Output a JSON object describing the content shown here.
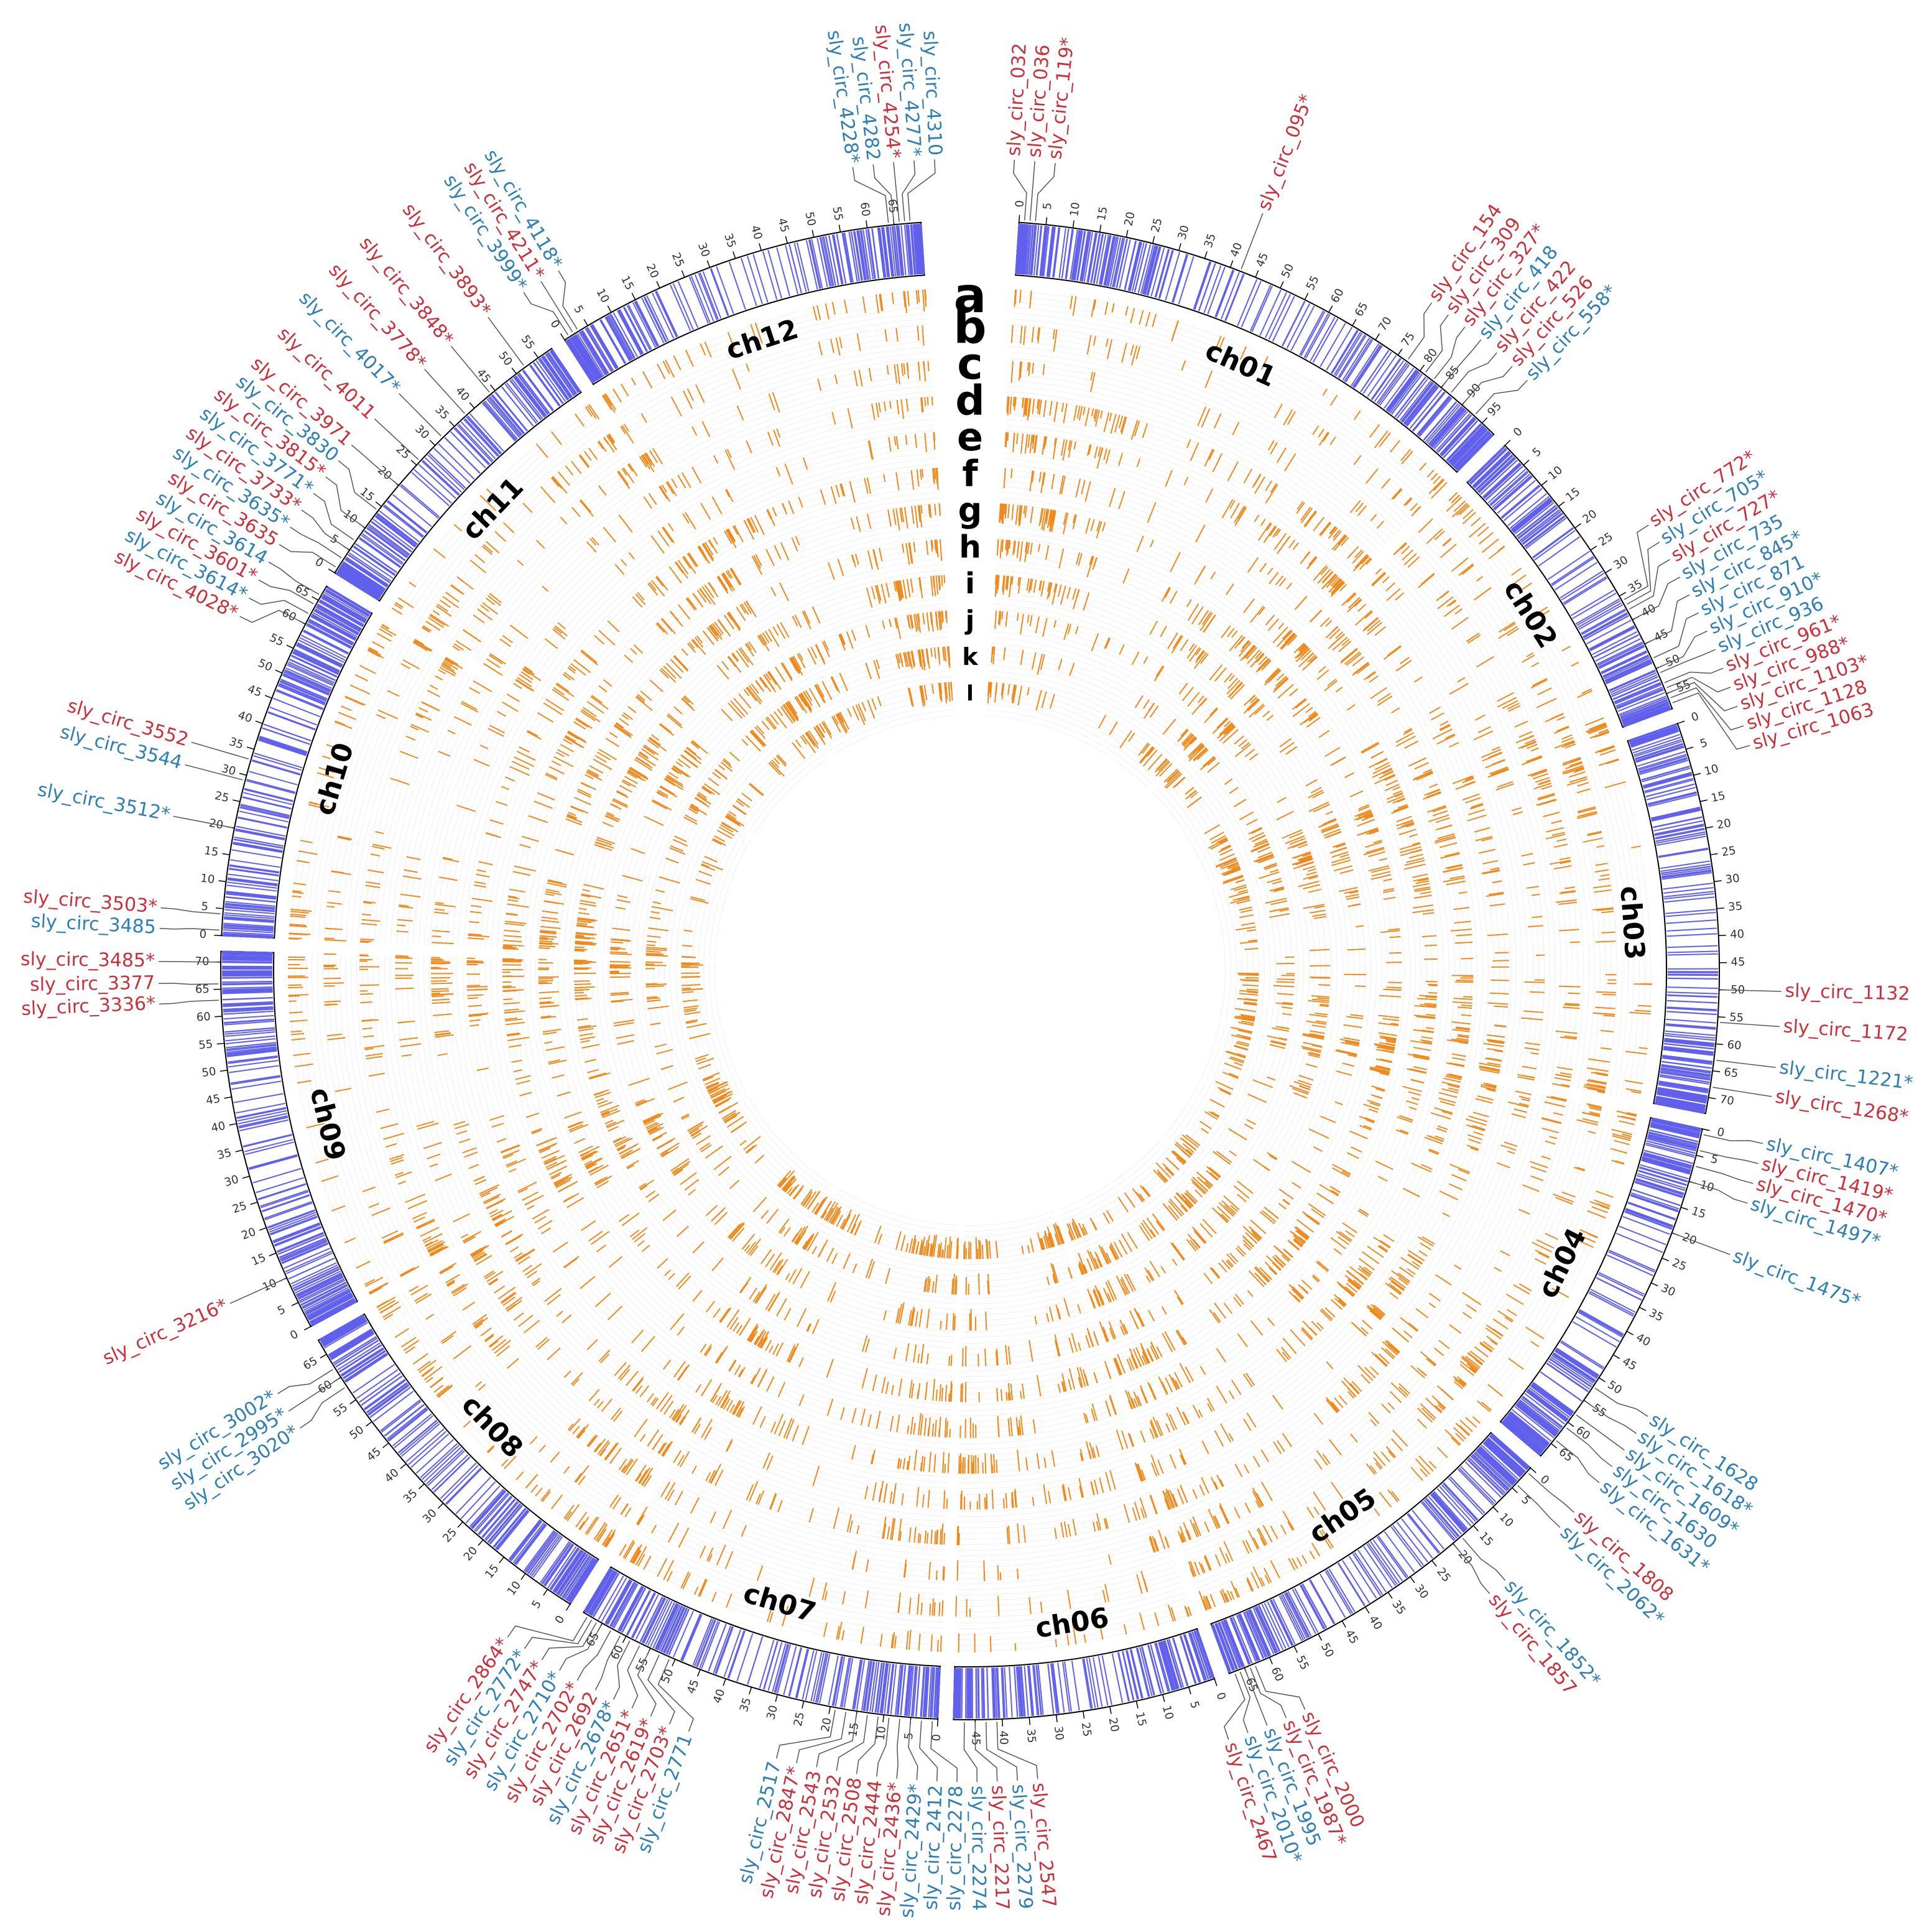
{
  "diagram": {
    "type": "circos",
    "colors": {
      "up": "#c8323c",
      "down": "#2f7fb3",
      "density": "#6060ec",
      "track": "#ee8a1e",
      "grid": "#c8c8c8",
      "ink": "#000000"
    },
    "track_letters": [
      "a",
      "b",
      "c",
      "d",
      "e",
      "f",
      "g",
      "h",
      "i",
      "j",
      "k",
      "l"
    ],
    "chromosomes": [
      {
        "name": "ch01",
        "size": 98,
        "ticks": [
          "0",
          "5",
          "10",
          "15",
          "20",
          "25",
          "30",
          "35",
          "40",
          "45",
          "50",
          "55",
          "60",
          "65",
          "70",
          "75",
          "80",
          "85",
          "90",
          "95"
        ]
      },
      {
        "name": "ch02",
        "size": 58,
        "ticks": [
          "0",
          "5",
          "10",
          "15",
          "20",
          "25",
          "30",
          "35",
          "40",
          "45",
          "50",
          "55"
        ]
      },
      {
        "name": "ch03",
        "size": 73,
        "ticks": [
          "0",
          "5",
          "10",
          "15",
          "20",
          "25",
          "30",
          "35",
          "40",
          "45",
          "50",
          "55",
          "60",
          "65",
          "70"
        ]
      },
      {
        "name": "ch04",
        "size": 68,
        "ticks": [
          "0",
          "5",
          "10",
          "15",
          "20",
          "25",
          "30",
          "35",
          "40",
          "45",
          "50",
          "55",
          "60",
          "65"
        ]
      },
      {
        "name": "ch05",
        "size": 68,
        "ticks": [
          "0",
          "5",
          "10",
          "15",
          "20",
          "25",
          "30",
          "35",
          "40",
          "45",
          "50",
          "55",
          "60",
          "65"
        ]
      },
      {
        "name": "ch06",
        "size": 49,
        "ticks": [
          "0",
          "5",
          "10",
          "15",
          "20",
          "25",
          "30",
          "35",
          "40",
          "45"
        ]
      },
      {
        "name": "ch07",
        "size": 69,
        "ticks": [
          "0",
          "5",
          "10",
          "15",
          "20",
          "25",
          "30",
          "35",
          "40",
          "45",
          "50",
          "55",
          "60",
          "65"
        ]
      },
      {
        "name": "ch08",
        "size": 68,
        "ticks": [
          "0",
          "5",
          "10",
          "15",
          "20",
          "25",
          "30",
          "35",
          "40",
          "45",
          "50",
          "55",
          "60",
          "65"
        ]
      },
      {
        "name": "ch09",
        "size": 72,
        "ticks": [
          "0",
          "5",
          "10",
          "15",
          "20",
          "25",
          "30",
          "35",
          "40",
          "45",
          "50",
          "55",
          "60",
          "65",
          "70"
        ]
      },
      {
        "name": "ch10",
        "size": 68,
        "ticks": [
          "0",
          "5",
          "10",
          "15",
          "20",
          "25",
          "30",
          "35",
          "40",
          "45",
          "50",
          "55",
          "60",
          "65"
        ]
      },
      {
        "name": "ch11",
        "size": 58,
        "ticks": [
          "0",
          "5",
          "10",
          "15",
          "20",
          "25",
          "30",
          "35",
          "40",
          "45",
          "50",
          "55"
        ]
      },
      {
        "name": "ch12",
        "size": 70,
        "ticks": [
          "0",
          "5",
          "10",
          "15",
          "20",
          "25",
          "30",
          "35",
          "40",
          "45",
          "50",
          "55",
          "60",
          "65"
        ]
      }
    ],
    "circrna_labels": [
      {
        "text": "sly_circ_032",
        "chr": "ch01",
        "pos": 1,
        "type": "up"
      },
      {
        "text": "sly_circ_036",
        "chr": "ch01",
        "pos": 2,
        "type": "up"
      },
      {
        "text": "sly_circ_119*",
        "chr": "ch01",
        "pos": 3,
        "type": "up"
      },
      {
        "text": "sly_circ_095*",
        "chr": "ch01",
        "pos": 42,
        "type": "up"
      },
      {
        "text": "sly_circ_154",
        "chr": "ch01",
        "pos": 77,
        "type": "up"
      },
      {
        "text": "sly_circ_309",
        "chr": "ch01",
        "pos": 81,
        "type": "up"
      },
      {
        "text": "sly_circ_327*",
        "chr": "ch01",
        "pos": 83,
        "type": "up"
      },
      {
        "text": "sly_circ_418",
        "chr": "ch01",
        "pos": 85,
        "type": "down"
      },
      {
        "text": "sly_circ_422",
        "chr": "ch01",
        "pos": 87,
        "type": "up"
      },
      {
        "text": "sly_circ_526",
        "chr": "ch01",
        "pos": 90,
        "type": "up"
      },
      {
        "text": "sly_circ_558*",
        "chr": "ch01",
        "pos": 93,
        "type": "down"
      },
      {
        "text": "sly_circ_772*",
        "chr": "ch02",
        "pos": 36,
        "type": "up"
      },
      {
        "text": "sly_circ_705*",
        "chr": "ch02",
        "pos": 37,
        "type": "down"
      },
      {
        "text": "sly_circ_727*",
        "chr": "ch02",
        "pos": 38,
        "type": "up"
      },
      {
        "text": "sly_circ_735",
        "chr": "ch02",
        "pos": 40,
        "type": "down"
      },
      {
        "text": "sly_circ_845*",
        "chr": "ch02",
        "pos": 45,
        "type": "down"
      },
      {
        "text": "sly_circ_871",
        "chr": "ch02",
        "pos": 48,
        "type": "down"
      },
      {
        "text": "sly_circ_910*",
        "chr": "ch02",
        "pos": 50,
        "type": "down"
      },
      {
        "text": "sly_circ_936",
        "chr": "ch02",
        "pos": 51,
        "type": "down"
      },
      {
        "text": "sly_circ_961*",
        "chr": "ch02",
        "pos": 53,
        "type": "up"
      },
      {
        "text": "sly_circ_988*",
        "chr": "ch02",
        "pos": 54,
        "type": "up"
      },
      {
        "text": "sly_circ_1103*",
        "chr": "ch02",
        "pos": 55,
        "type": "up"
      },
      {
        "text": "sly_circ_1128",
        "chr": "ch02",
        "pos": 56,
        "type": "up"
      },
      {
        "text": "sly_circ_1063",
        "chr": "ch02",
        "pos": 57,
        "type": "up"
      },
      {
        "text": "sly_circ_1132",
        "chr": "ch03",
        "pos": 50,
        "type": "up"
      },
      {
        "text": "sly_circ_1172",
        "chr": "ch03",
        "pos": 56,
        "type": "up"
      },
      {
        "text": "sly_circ_1221*",
        "chr": "ch03",
        "pos": 63,
        "type": "down"
      },
      {
        "text": "sly_circ_1268*",
        "chr": "ch03",
        "pos": 68,
        "type": "up"
      },
      {
        "text": "sly_circ_1407*",
        "chr": "ch04",
        "pos": 1,
        "type": "down"
      },
      {
        "text": "sly_circ_1419*",
        "chr": "ch04",
        "pos": 4,
        "type": "up"
      },
      {
        "text": "sly_circ_1470*",
        "chr": "ch04",
        "pos": 7,
        "type": "up"
      },
      {
        "text": "sly_circ_1497*",
        "chr": "ch04",
        "pos": 10,
        "type": "down"
      },
      {
        "text": "sly_circ_1475*",
        "chr": "ch04",
        "pos": 20,
        "type": "down"
      },
      {
        "text": "sly_circ_1628",
        "chr": "ch04",
        "pos": 52,
        "type": "down"
      },
      {
        "text": "sly_circ_1618*",
        "chr": "ch04",
        "pos": 55,
        "type": "down"
      },
      {
        "text": "sly_circ_1609*",
        "chr": "ch04",
        "pos": 58,
        "type": "down"
      },
      {
        "text": "sly_circ_1630",
        "chr": "ch04",
        "pos": 61,
        "type": "down"
      },
      {
        "text": "sly_circ_1631*",
        "chr": "ch04",
        "pos": 64,
        "type": "down"
      },
      {
        "text": "sly_circ_1808",
        "chr": "ch05",
        "pos": 1,
        "type": "up"
      },
      {
        "text": "sly_circ_2062*",
        "chr": "ch05",
        "pos": 4,
        "type": "down"
      },
      {
        "text": "sly_circ_1852*",
        "chr": "ch05",
        "pos": 18,
        "type": "down"
      },
      {
        "text": "sly_circ_1857",
        "chr": "ch05",
        "pos": 20,
        "type": "up"
      },
      {
        "text": "sly_circ_2000",
        "chr": "ch05",
        "pos": 63,
        "type": "up"
      },
      {
        "text": "sly_circ_1987*",
        "chr": "ch05",
        "pos": 64,
        "type": "up"
      },
      {
        "text": "sly_circ_1995",
        "chr": "ch05",
        "pos": 65,
        "type": "down"
      },
      {
        "text": "sly_circ_2010*",
        "chr": "ch05",
        "pos": 66,
        "type": "down"
      },
      {
        "text": "sly_circ_2467",
        "chr": "ch05",
        "pos": 67,
        "type": "up"
      },
      {
        "text": "sly_circ_2547",
        "chr": "ch06",
        "pos": 41,
        "type": "up"
      },
      {
        "text": "sly_circ_2279",
        "chr": "ch06",
        "pos": 43,
        "type": "down"
      },
      {
        "text": "sly_circ_2217",
        "chr": "ch06",
        "pos": 45,
        "type": "up"
      },
      {
        "text": "sly_circ_2274",
        "chr": "ch06",
        "pos": 47,
        "type": "down"
      },
      {
        "text": "sly_circ_2278",
        "chr": "ch07",
        "pos": 1,
        "type": "down"
      },
      {
        "text": "sly_circ_2412",
        "chr": "ch07",
        "pos": 3,
        "type": "down"
      },
      {
        "text": "sly_circ_2429*",
        "chr": "ch07",
        "pos": 5,
        "type": "down"
      },
      {
        "text": "sly_circ_2436*",
        "chr": "ch07",
        "pos": 7,
        "type": "up"
      },
      {
        "text": "sly_circ_2444",
        "chr": "ch07",
        "pos": 9,
        "type": "up"
      },
      {
        "text": "sly_circ_2508",
        "chr": "ch07",
        "pos": 11,
        "type": "up"
      },
      {
        "text": "sly_circ_2532",
        "chr": "ch07",
        "pos": 13,
        "type": "up"
      },
      {
        "text": "sly_circ_2543",
        "chr": "ch07",
        "pos": 15,
        "type": "up"
      },
      {
        "text": "sly_circ_2847*",
        "chr": "ch07",
        "pos": 17,
        "type": "up"
      },
      {
        "text": "sly_circ_2517",
        "chr": "ch07",
        "pos": 19,
        "type": "down"
      },
      {
        "text": "sly_circ_2771",
        "chr": "ch07",
        "pos": 51,
        "type": "down"
      },
      {
        "text": "sly_circ_2703*",
        "chr": "ch07",
        "pos": 53,
        "type": "up"
      },
      {
        "text": "sly_circ_2619*",
        "chr": "ch07",
        "pos": 55,
        "type": "up"
      },
      {
        "text": "sly_circ_2651*",
        "chr": "ch07",
        "pos": 57,
        "type": "up"
      },
      {
        "text": "sly_circ_2678*",
        "chr": "ch07",
        "pos": 59,
        "type": "down"
      },
      {
        "text": "sly_circ_2692",
        "chr": "ch07",
        "pos": 61,
        "type": "up"
      },
      {
        "text": "sly_circ_2702*",
        "chr": "ch07",
        "pos": 63,
        "type": "up"
      },
      {
        "text": "sly_circ_2710*",
        "chr": "ch07",
        "pos": 65,
        "type": "down"
      },
      {
        "text": "sly_circ_2747*",
        "chr": "ch07",
        "pos": 66,
        "type": "up"
      },
      {
        "text": "sly_circ_2772*",
        "chr": "ch07",
        "pos": 67,
        "type": "down"
      },
      {
        "text": "sly_circ_2864*",
        "chr": "ch07",
        "pos": 68,
        "type": "up"
      },
      {
        "text": "sly_circ_3020*",
        "chr": "ch08",
        "pos": 58,
        "type": "down"
      },
      {
        "text": "sly_circ_2995*",
        "chr": "ch08",
        "pos": 60,
        "type": "down"
      },
      {
        "text": "sly_circ_3002*",
        "chr": "ch08",
        "pos": 62,
        "type": "down"
      },
      {
        "text": "sly_circ_3216*",
        "chr": "ch09",
        "pos": 10,
        "type": "up"
      },
      {
        "text": "sly_circ_3336*",
        "chr": "ch09",
        "pos": 63,
        "type": "up"
      },
      {
        "text": "sly_circ_3377",
        "chr": "ch09",
        "pos": 66,
        "type": "up"
      },
      {
        "text": "sly_circ_3485*",
        "chr": "ch09",
        "pos": 70,
        "type": "up"
      },
      {
        "text": "sly_circ_3485",
        "chr": "ch10",
        "pos": 1,
        "type": "down"
      },
      {
        "text": "sly_circ_3503*",
        "chr": "ch10",
        "pos": 4,
        "type": "up"
      },
      {
        "text": "sly_circ_3512*",
        "chr": "ch10",
        "pos": 20,
        "type": "down"
      },
      {
        "text": "sly_circ_3544",
        "chr": "ch10",
        "pos": 29,
        "type": "down"
      },
      {
        "text": "sly_circ_3552",
        "chr": "ch10",
        "pos": 33,
        "type": "up"
      },
      {
        "text": "sly_circ_4028*",
        "chr": "ch10",
        "pos": 60,
        "type": "up"
      },
      {
        "text": "sly_circ_3614*",
        "chr": "ch10",
        "pos": 62,
        "type": "down"
      },
      {
        "text": "sly_circ_3601*",
        "chr": "ch10",
        "pos": 64,
        "type": "up"
      },
      {
        "text": "sly_circ_3614",
        "chr": "ch10",
        "pos": 66,
        "type": "down"
      },
      {
        "text": "sly_circ_3635",
        "chr": "ch11",
        "pos": 1,
        "type": "up"
      },
      {
        "text": "sly_circ_3635*",
        "chr": "ch11",
        "pos": 3,
        "type": "down"
      },
      {
        "text": "sly_circ_3733*",
        "chr": "ch11",
        "pos": 5,
        "type": "up"
      },
      {
        "text": "sly_circ_3771*",
        "chr": "ch11",
        "pos": 7,
        "type": "down"
      },
      {
        "text": "sly_circ_3815*",
        "chr": "ch11",
        "pos": 10,
        "type": "up"
      },
      {
        "text": "sly_circ_3830",
        "chr": "ch11",
        "pos": 14,
        "type": "down"
      },
      {
        "text": "sly_circ_3971",
        "chr": "ch11",
        "pos": 20,
        "type": "up"
      },
      {
        "text": "sly_circ_4011",
        "chr": "ch11",
        "pos": 26,
        "type": "up"
      },
      {
        "text": "sly_circ_4017*",
        "chr": "ch11",
        "pos": 32,
        "type": "down"
      },
      {
        "text": "sly_circ_3778*",
        "chr": "ch11",
        "pos": 38,
        "type": "up"
      },
      {
        "text": "sly_circ_3848*",
        "chr": "ch11",
        "pos": 44,
        "type": "up"
      },
      {
        "text": "sly_circ_3893*",
        "chr": "ch11",
        "pos": 52,
        "type": "up"
      },
      {
        "text": "sly_circ_3999*",
        "chr": "ch12",
        "pos": 1,
        "type": "down"
      },
      {
        "text": "sly_circ_4211*",
        "chr": "ch12",
        "pos": 2,
        "type": "up"
      },
      {
        "text": "sly_circ_4118*",
        "chr": "ch12",
        "pos": 3,
        "type": "down"
      },
      {
        "text": "sly_circ_4228*",
        "chr": "ch12",
        "pos": 64,
        "type": "down"
      },
      {
        "text": "sly_circ_4282",
        "chr": "ch12",
        "pos": 65,
        "type": "down"
      },
      {
        "text": "sly_circ_4254*",
        "chr": "ch12",
        "pos": 66,
        "type": "up"
      },
      {
        "text": "sly_circ_4277*",
        "chr": "ch12",
        "pos": 67,
        "type": "down"
      },
      {
        "text": "sly_circ_4310",
        "chr": "ch12",
        "pos": 68,
        "type": "down"
      }
    ]
  }
}
